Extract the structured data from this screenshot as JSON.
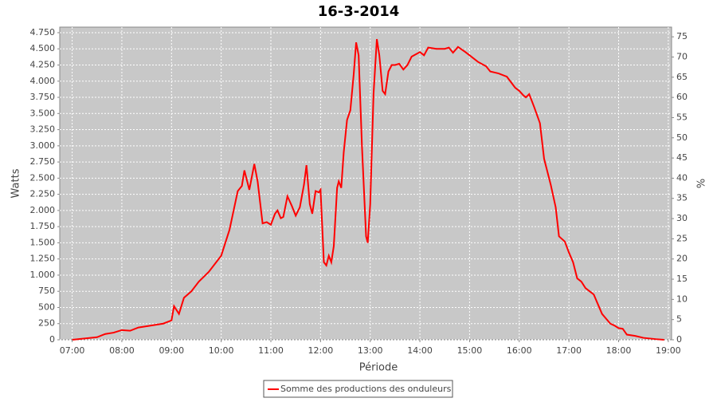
{
  "chart_data": {
    "type": "line",
    "title": "16-3-2014",
    "x_label": "Période",
    "y_label": "Watts",
    "y2_label": "%",
    "x": [
      "07:00",
      "07:15",
      "07:30",
      "07:40",
      "07:50",
      "08:00",
      "08:10",
      "08:20",
      "08:30",
      "08:40",
      "08:50",
      "09:00",
      "09:03",
      "09:09",
      "09:15",
      "09:24",
      "09:33",
      "09:45",
      "10:00",
      "10:10",
      "10:15",
      "10:20",
      "10:25",
      "10:28",
      "10:34",
      "10:40",
      "10:44",
      "10:50",
      "10:55",
      "11:00",
      "11:05",
      "11:08",
      "11:12",
      "11:15",
      "11:20",
      "11:25",
      "11:30",
      "11:35",
      "11:40",
      "11:43",
      "11:47",
      "11:50",
      "11:54",
      "11:58",
      "12:00",
      "12:04",
      "12:07",
      "12:10",
      "12:13",
      "12:16",
      "12:20",
      "12:22",
      "12:25",
      "12:28",
      "12:32",
      "12:36",
      "12:40",
      "12:43",
      "12:46",
      "12:50",
      "12:55",
      "12:57",
      "13:00",
      "13:04",
      "13:08",
      "13:11",
      "13:15",
      "13:18",
      "13:22",
      "13:26",
      "13:30",
      "13:35",
      "13:40",
      "13:45",
      "13:50",
      "14:00",
      "14:05",
      "14:10",
      "14:20",
      "14:30",
      "14:35",
      "14:40",
      "14:46",
      "14:55",
      "15:00",
      "15:10",
      "15:20",
      "15:25",
      "15:35",
      "15:45",
      "15:55",
      "16:00",
      "16:05",
      "16:08",
      "16:12",
      "16:18",
      "16:25",
      "16:30",
      "16:38",
      "16:44",
      "16:48",
      "16:55",
      "17:00",
      "17:05",
      "17:10",
      "17:15",
      "17:20",
      "17:30",
      "17:35",
      "17:40",
      "17:50",
      "17:55",
      "18:00",
      "18:05",
      "18:10",
      "18:20",
      "18:30",
      "18:45",
      "18:55"
    ],
    "series": [
      {
        "name": "Somme des productions des onduleurs",
        "color": "#ff0000",
        "values": [
          0,
          20,
          40,
          90,
          110,
          150,
          140,
          190,
          210,
          230,
          250,
          300,
          520,
          400,
          650,
          750,
          900,
          1050,
          1300,
          1700,
          2000,
          2300,
          2380,
          2620,
          2320,
          2720,
          2450,
          1800,
          1820,
          1780,
          1950,
          2000,
          1880,
          1900,
          2220,
          2080,
          1920,
          2050,
          2400,
          2700,
          2100,
          1950,
          2300,
          2280,
          2320,
          1200,
          1150,
          1300,
          1200,
          1450,
          2350,
          2450,
          2350,
          2900,
          3400,
          3550,
          4100,
          4600,
          4400,
          3000,
          1600,
          1500,
          2100,
          3800,
          4650,
          4400,
          3850,
          3800,
          4150,
          4250,
          4250,
          4270,
          4180,
          4250,
          4380,
          4450,
          4400,
          4520,
          4500,
          4500,
          4520,
          4440,
          4530,
          4450,
          4400,
          4300,
          4230,
          4150,
          4120,
          4070,
          3900,
          3850,
          3780,
          3750,
          3800,
          3600,
          3350,
          2800,
          2400,
          2050,
          1600,
          1520,
          1350,
          1200,
          950,
          900,
          800,
          700,
          550,
          400,
          250,
          220,
          180,
          170,
          80,
          60,
          30,
          10,
          0
        ]
      }
    ],
    "xlim": [
      "06:45",
      "19:04"
    ],
    "xticks": [
      "07:00",
      "08:00",
      "09:00",
      "10:00",
      "11:00",
      "12:00",
      "13:00",
      "14:00",
      "15:00",
      "16:00",
      "17:00",
      "18:00",
      "19:00"
    ],
    "ylim": [
      0,
      4836
    ],
    "yticks": [
      0,
      250,
      500,
      750,
      {
        "value": 1000,
        "label": "1.000"
      },
      {
        "value": 1250,
        "label": "1.250"
      },
      {
        "value": 1500,
        "label": "1.500"
      },
      {
        "value": 1750,
        "label": "1.750"
      },
      {
        "value": 2000,
        "label": "2.000"
      },
      {
        "value": 2250,
        "label": "2.250"
      },
      {
        "value": 2500,
        "label": "2.500"
      },
      {
        "value": 2750,
        "label": "2.750"
      },
      {
        "value": 3000,
        "label": "3.000"
      },
      {
        "value": 3250,
        "label": "3.250"
      },
      {
        "value": 3500,
        "label": "3.500"
      },
      {
        "value": 3750,
        "label": "3.750"
      },
      {
        "value": 4000,
        "label": "4.000"
      },
      {
        "value": 4250,
        "label": "4.250"
      },
      {
        "value": 4500,
        "label": "4.500"
      },
      {
        "value": 4750,
        "label": "4.750"
      }
    ],
    "y2lim": [
      0,
      77.4
    ],
    "y2ticks": [
      0,
      5,
      10,
      15,
      20,
      25,
      30,
      35,
      40,
      45,
      50,
      55,
      60,
      65,
      70,
      75
    ],
    "grid": true,
    "legend": "bottom"
  }
}
